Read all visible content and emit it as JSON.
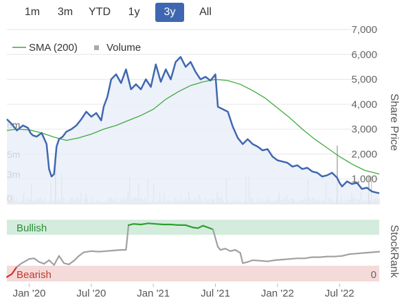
{
  "range_selector": {
    "buttons": [
      "1m",
      "3m",
      "YTD",
      "1y",
      "3y",
      "All"
    ],
    "active": "3y"
  },
  "colors": {
    "price_line": "#3f67b1",
    "price_fill": "#e9eef8",
    "sma_line": "#3caa3c",
    "volume_bar": "#c8c8c8",
    "bullish_band": "#d4ecdd",
    "bearish_band": "#f5dada",
    "bullish_text": "#2e8b3a",
    "bearish_text": "#c0392b",
    "stockrank_line": "#a0a0a0",
    "stockrank_bull": "#2e9e2e",
    "stockrank_bear": "#d0312d"
  },
  "chart_data": [
    {
      "type": "line",
      "legend": [
        {
          "name": "SMA (200)",
          "symbol": "line"
        },
        {
          "name": "Volume",
          "symbol": "square"
        }
      ],
      "legend_position": "top-left",
      "ylabel": "Share Price",
      "y_ticks": [
        "7,000",
        "6,000",
        "5,000",
        "4,000",
        "3,000",
        "2,000",
        "1,000"
      ],
      "y_tick_values": [
        7000,
        6000,
        5000,
        4000,
        3000,
        2000,
        1000
      ],
      "ylim": [
        0,
        7000
      ],
      "volume_ticks": [
        "8m",
        "5m",
        "3m",
        "0"
      ],
      "volume_tick_values": [
        8,
        5,
        3,
        0
      ],
      "volume_unit": "m",
      "x_ticks": [
        "Jan '20",
        "Jul '20",
        "Jan '21",
        "Jul '21",
        "Jan '22",
        "Jul '22"
      ],
      "x_tick_values": [
        2020.0,
        2020.5,
        2021.0,
        2021.5,
        2022.0,
        2022.5
      ],
      "xlim": [
        2019.82,
        2022.82
      ],
      "grid": true,
      "series": [
        {
          "name": "Share Price",
          "x": [
            2019.82,
            2019.86,
            2019.9,
            2019.95,
            2019.99,
            2020.01,
            2020.03,
            2020.06,
            2020.1,
            2020.14,
            2020.16,
            2020.18,
            2020.2,
            2020.22,
            2020.24,
            2020.27,
            2020.3,
            2020.34,
            2020.38,
            2020.42,
            2020.46,
            2020.5,
            2020.54,
            2020.58,
            2020.6,
            2020.63,
            2020.66,
            2020.7,
            2020.74,
            2020.78,
            2020.82,
            2020.86,
            2020.9,
            2020.94,
            2020.98,
            2021.02,
            2021.06,
            2021.1,
            2021.14,
            2021.18,
            2021.22,
            2021.26,
            2021.3,
            2021.34,
            2021.38,
            2021.42,
            2021.46,
            2021.5,
            2021.52,
            2021.56,
            2021.6,
            2021.64,
            2021.68,
            2021.72,
            2021.76,
            2021.8,
            2021.84,
            2021.88,
            2021.92,
            2021.96,
            2022.0,
            2022.04,
            2022.08,
            2022.12,
            2022.16,
            2022.2,
            2022.24,
            2022.28,
            2022.32,
            2022.36,
            2022.4,
            2022.44,
            2022.48,
            2022.5,
            2022.52,
            2022.56,
            2022.6,
            2022.64,
            2022.68,
            2022.72,
            2022.76,
            2022.8,
            2022.82
          ],
          "y": [
            3400,
            3200,
            2950,
            3150,
            3050,
            2850,
            2750,
            2700,
            2850,
            2400,
            1400,
            1100,
            1200,
            2300,
            2600,
            2700,
            2900,
            3000,
            3150,
            3400,
            3700,
            3500,
            3650,
            3350,
            3900,
            4300,
            5000,
            5200,
            4850,
            5400,
            4600,
            4800,
            4600,
            5000,
            4700,
            5600,
            4900,
            5400,
            5000,
            5700,
            5900,
            5500,
            5700,
            5300,
            5000,
            5100,
            4950,
            5200,
            3900,
            3800,
            3700,
            3100,
            2650,
            2400,
            2600,
            2400,
            2300,
            2150,
            2200,
            1900,
            1750,
            1700,
            1650,
            1500,
            1550,
            1400,
            1450,
            1300,
            1250,
            1100,
            1150,
            1250,
            1050,
            850,
            700,
            900,
            800,
            850,
            600,
            650,
            500,
            450,
            430
          ]
        },
        {
          "name": "SMA (200)",
          "x": [
            2019.82,
            2019.9,
            2020.0,
            2020.1,
            2020.2,
            2020.3,
            2020.4,
            2020.5,
            2020.6,
            2020.7,
            2020.8,
            2020.9,
            2021.0,
            2021.1,
            2021.2,
            2021.3,
            2021.4,
            2021.5,
            2021.6,
            2021.7,
            2021.8,
            2021.9,
            2022.0,
            2022.1,
            2022.2,
            2022.3,
            2022.4,
            2022.5,
            2022.6,
            2022.7,
            2022.82
          ],
          "y": [
            2950,
            3000,
            2970,
            2850,
            2680,
            2550,
            2650,
            2800,
            3000,
            3150,
            3350,
            3550,
            3800,
            4200,
            4500,
            4750,
            4900,
            5000,
            4950,
            4800,
            4550,
            4250,
            3850,
            3450,
            3000,
            2600,
            2250,
            1900,
            1600,
            1350,
            1200
          ]
        }
      ]
    },
    {
      "type": "line",
      "ylabel": "StockRank",
      "band_labels": [
        "Bullish",
        "Bearish"
      ],
      "right_tick": "0",
      "x_ticks": [
        "Jan '20",
        "Jul '20",
        "Jan '21",
        "Jul '21",
        "Jan '22",
        "Jul '22"
      ],
      "series": [
        {
          "name": "StockRank",
          "x": [
            2019.82,
            2019.86,
            2019.9,
            2019.94,
            2020.0,
            2020.04,
            2020.08,
            2020.12,
            2020.16,
            2020.2,
            2020.24,
            2020.28,
            2020.32,
            2020.36,
            2020.4,
            2020.44,
            2020.5,
            2020.56,
            2020.62,
            2020.68,
            2020.74,
            2020.78,
            2020.8,
            2020.84,
            2020.9,
            2020.96,
            2021.02,
            2021.08,
            2021.14,
            2021.2,
            2021.26,
            2021.32,
            2021.36,
            2021.4,
            2021.44,
            2021.48,
            2021.52,
            2021.54,
            2021.58,
            2021.62,
            2021.66,
            2021.7,
            2021.72,
            2021.76,
            2021.8,
            2021.86,
            2021.92,
            2021.98,
            2022.04,
            2022.1,
            2022.16,
            2022.22,
            2022.28,
            2022.34,
            2022.4,
            2022.46,
            2022.52,
            2022.58,
            2022.64,
            2022.7,
            2022.76,
            2022.82
          ],
          "y": [
            5,
            10,
            22,
            28,
            35,
            36,
            30,
            27,
            33,
            25,
            40,
            28,
            26,
            32,
            40,
            46,
            48,
            47,
            48,
            49,
            50,
            50,
            91,
            93,
            92,
            94,
            93,
            92,
            92,
            91,
            91,
            87,
            86,
            90,
            87,
            84,
            55,
            50,
            52,
            48,
            50,
            45,
            28,
            30,
            33,
            32,
            31,
            33,
            34,
            35,
            36,
            36,
            38,
            38,
            39,
            39,
            40,
            43,
            44,
            45,
            46,
            47
          ]
        }
      ]
    }
  ]
}
